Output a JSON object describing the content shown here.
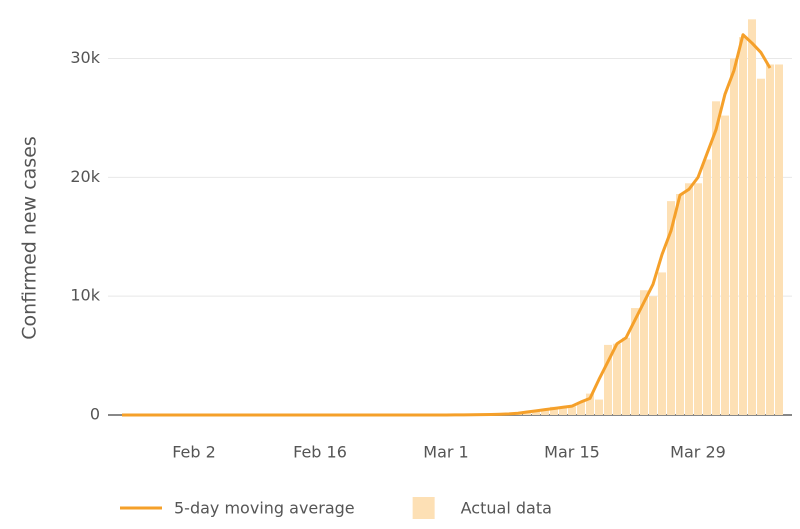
{
  "chart_data": {
    "type": "combo",
    "y_label": "Confirmed new cases",
    "categories": [
      null,
      null,
      null,
      null,
      null,
      null,
      null,
      null,
      "Feb 2",
      null,
      null,
      null,
      null,
      null,
      null,
      null,
      null,
      null,
      null,
      null,
      null,
      null,
      "Feb 16",
      null,
      null,
      null,
      null,
      null,
      null,
      null,
      null,
      null,
      null,
      null,
      null,
      null,
      "Mar 1",
      null,
      null,
      null,
      null,
      null,
      null,
      null,
      null,
      null,
      null,
      null,
      null,
      null,
      "Mar 15",
      null,
      null,
      null,
      null,
      null,
      null,
      null,
      null,
      null,
      null,
      null,
      null,
      null,
      "Mar 29",
      null,
      null,
      null,
      null,
      null,
      null,
      null,
      null,
      null
    ],
    "series": [
      {
        "name": "5-day moving average",
        "type": "line",
        "color": "#f5a02a",
        "values": [
          0,
          0,
          0,
          0,
          0,
          0,
          0,
          0,
          0,
          0,
          0,
          0,
          0,
          0,
          0,
          0,
          0,
          0,
          0,
          0,
          0,
          0,
          0,
          0,
          0,
          0,
          0,
          0,
          0,
          0,
          0,
          0,
          0,
          0,
          0,
          0,
          5,
          10,
          15,
          25,
          30,
          40,
          60,
          90,
          150,
          250,
          350,
          450,
          550,
          650,
          750,
          1100,
          1400,
          3000,
          4500,
          6000,
          6500,
          8000,
          9500,
          11000,
          13500,
          15500,
          18500,
          19000,
          20000,
          22000,
          24000,
          27000,
          29000,
          32000,
          31300,
          30500,
          29200,
          null
        ]
      },
      {
        "name": "Actual data",
        "type": "bar",
        "color": "#fde0b5",
        "values": [
          0,
          1,
          0,
          0,
          0,
          1,
          1,
          1,
          0,
          0,
          0,
          0,
          3,
          0,
          0,
          0,
          0,
          0,
          1,
          0,
          0,
          0,
          0,
          0,
          0,
          0,
          0,
          0,
          0,
          0,
          0,
          0,
          1,
          0,
          0,
          3,
          7,
          20,
          15,
          20,
          30,
          50,
          60,
          120,
          150,
          290,
          390,
          480,
          690,
          620,
          730,
          1100,
          1800,
          1300,
          5900,
          6000,
          6500,
          9000,
          10500,
          10000,
          12000,
          18000,
          18600,
          19500,
          19500,
          21500,
          26400,
          25200,
          30000,
          31800,
          33300,
          28300,
          29500,
          29500
        ]
      }
    ],
    "ylim": [
      0,
      34000
    ],
    "yticks": [
      0,
      {
        "value": 10000,
        "label": "10k"
      },
      {
        "value": 20000,
        "label": "20k"
      },
      {
        "value": 30000,
        "label": "30k"
      }
    ],
    "grid": true
  }
}
